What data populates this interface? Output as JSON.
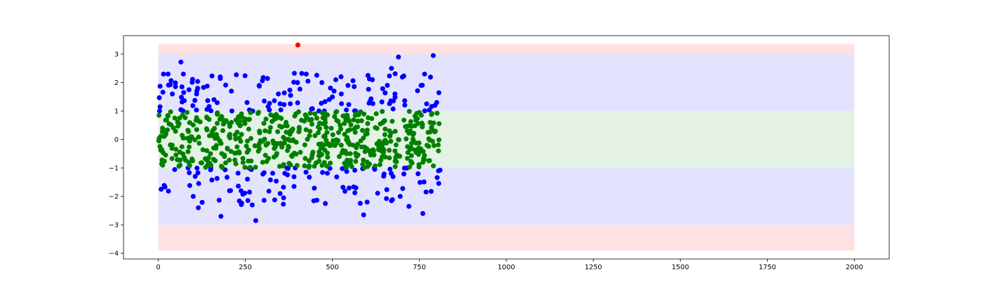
{
  "chart_data": {
    "type": "scatter",
    "title": "",
    "xlabel": "",
    "ylabel": "",
    "xlim": [
      -100,
      2100
    ],
    "ylim": [
      -4.2,
      3.65
    ],
    "x_ticks": [
      0,
      250,
      500,
      750,
      1000,
      1250,
      1500,
      1750,
      2000
    ],
    "x_tick_labels": [
      "0",
      "250",
      "500",
      "750",
      "1000",
      "1250",
      "1500",
      "1750",
      "2000"
    ],
    "y_ticks": [
      3,
      2,
      1,
      0,
      -1,
      -2,
      -3,
      -4
    ],
    "y_tick_labels": [
      "3",
      "2",
      "1",
      "0",
      "−1",
      "−2",
      "−3",
      "−4"
    ],
    "grid": false,
    "legend": "none",
    "bands": [
      {
        "name": "outer",
        "color": "#ffc8c8",
        "opacity": 0.55,
        "x_range": [
          0,
          2000
        ],
        "y_ranges": [
          [
            2.99,
            3.35
          ],
          [
            -3.9,
            -3.01
          ]
        ]
      },
      {
        "name": "mid",
        "color": "#c8c8ff",
        "opacity": 0.5,
        "x_range": [
          0,
          2000
        ],
        "y_ranges": [
          [
            1.0,
            2.99
          ],
          [
            -3.01,
            -1.0
          ]
        ]
      },
      {
        "name": "inner",
        "color": "#c8e6c8",
        "opacity": 0.5,
        "x_range": [
          0,
          2000
        ],
        "y_ranges": [
          [
            -1.0,
            1.0
          ]
        ]
      }
    ],
    "series": [
      {
        "color": "#008000",
        "n_points": 560,
        "x_range": [
          0,
          810
        ],
        "y_range": [
          -0.99,
          0.99
        ],
        "points_sample": [
          [
            2,
            0.85
          ],
          [
            12,
            0.4
          ],
          [
            40,
            -0.2
          ],
          [
            95,
            0.1
          ],
          [
            150,
            -0.5
          ],
          [
            210,
            0.6
          ],
          [
            300,
            -0.8
          ],
          [
            380,
            0.3
          ],
          [
            450,
            0.9
          ],
          [
            520,
            -0.6
          ],
          [
            600,
            0.2
          ],
          [
            680,
            -0.4
          ],
          [
            750,
            0.95
          ],
          [
            805,
            -0.4
          ]
        ]
      },
      {
        "color": "#0000ff",
        "n_points": 250,
        "x_range": [
          0,
          810
        ],
        "points": [
          [
            5,
            1.15
          ],
          [
            8,
            -1.75
          ],
          [
            15,
            2.3
          ],
          [
            28,
            2.3
          ],
          [
            65,
            2.72
          ],
          [
            68,
            1.85
          ],
          [
            72,
            2.3
          ],
          [
            73,
            1.65
          ],
          [
            110,
            1.6
          ],
          [
            115,
            -2.4
          ],
          [
            160,
            1.4
          ],
          [
            178,
            2.2
          ],
          [
            180,
            -2.7
          ],
          [
            210,
            1.7
          ],
          [
            255,
            1.3
          ],
          [
            262,
            -1.85
          ],
          [
            270,
            -2.3
          ],
          [
            280,
            -2.85
          ],
          [
            290,
            1.9
          ],
          [
            345,
            1.6
          ],
          [
            350,
            -1.9
          ],
          [
            360,
            -2.05
          ],
          [
            380,
            1.55
          ],
          [
            390,
            -1.65
          ],
          [
            400,
            2.0
          ],
          [
            425,
            2.3
          ],
          [
            430,
            2.05
          ],
          [
            470,
            2.0
          ],
          [
            480,
            -2.25
          ],
          [
            505,
            1.7
          ],
          [
            510,
            2.1
          ],
          [
            545,
            1.9
          ],
          [
            590,
            -2.65
          ],
          [
            600,
            -2.2
          ],
          [
            615,
            2.1
          ],
          [
            670,
            2.5
          ],
          [
            680,
            1.6
          ],
          [
            690,
            2.9
          ],
          [
            695,
            -2.0
          ],
          [
            720,
            -2.35
          ],
          [
            755,
            1.9
          ],
          [
            760,
            -2.6
          ],
          [
            765,
            2.3
          ],
          [
            790,
            2.95
          ],
          [
            795,
            1.2
          ],
          [
            800,
            1.3
          ],
          [
            805,
            -1.1
          ]
        ]
      },
      {
        "color": "#ff0000",
        "n_points": 1,
        "points": [
          [
            401,
            3.32
          ]
        ]
      }
    ]
  }
}
